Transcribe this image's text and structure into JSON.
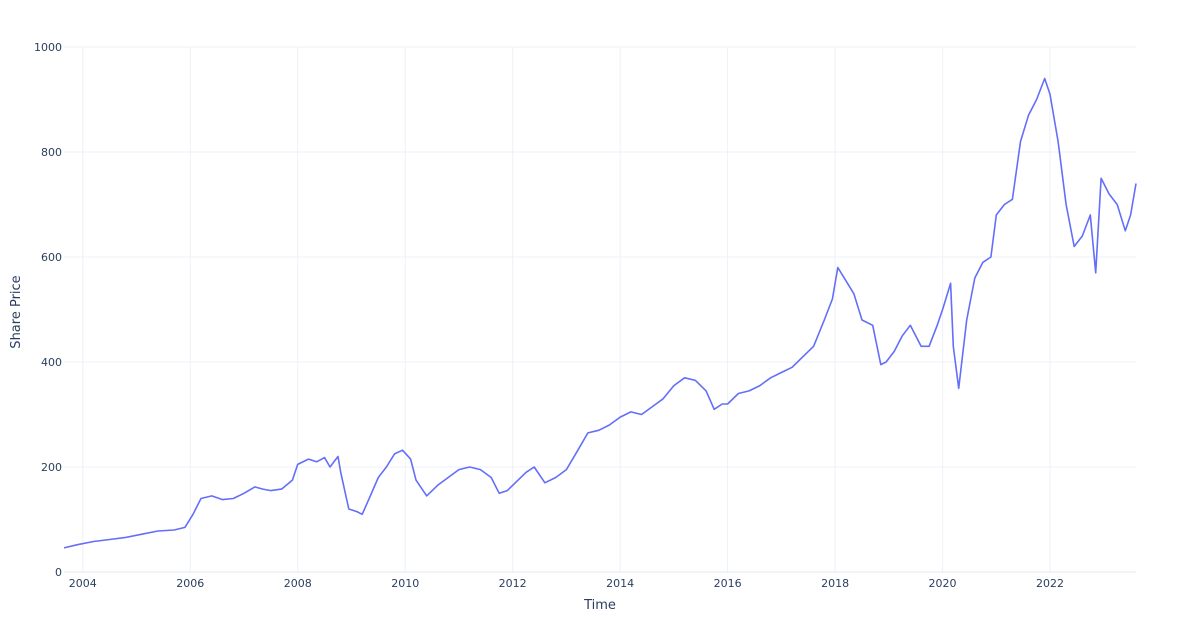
{
  "chart_data": {
    "type": "line",
    "xlabel": "Time",
    "ylabel": "Share Price",
    "xlim": [
      2003.65,
      2023.6
    ],
    "ylim": [
      0,
      1000
    ],
    "x_ticks": [
      2004,
      2006,
      2008,
      2010,
      2012,
      2014,
      2016,
      2018,
      2020,
      2022
    ],
    "y_ticks": [
      0,
      200,
      400,
      600,
      800,
      1000
    ],
    "grid": true,
    "legend": "none",
    "colors": {
      "line": "#636efa",
      "grid": "#edf1f7",
      "text": "#2a3f5f"
    },
    "series": [
      {
        "x": [
          2003.65,
          2003.9,
          2004.2,
          2004.5,
          2004.8,
          2005.1,
          2005.4,
          2005.7,
          2005.9,
          2006.05,
          2006.2,
          2006.4,
          2006.6,
          2006.8,
          2007.0,
          2007.2,
          2007.35,
          2007.5,
          2007.7,
          2007.9,
          2008.0,
          2008.2,
          2008.35,
          2008.5,
          2008.6,
          2008.75,
          2008.8,
          2008.95,
          2009.1,
          2009.2,
          2009.35,
          2009.5,
          2009.65,
          2009.8,
          2009.95,
          2010.1,
          2010.2,
          2010.4,
          2010.6,
          2010.8,
          2011.0,
          2011.2,
          2011.4,
          2011.6,
          2011.75,
          2011.9,
          2012.1,
          2012.25,
          2012.4,
          2012.6,
          2012.8,
          2013.0,
          2013.2,
          2013.4,
          2013.6,
          2013.8,
          2014.0,
          2014.2,
          2014.4,
          2014.6,
          2014.8,
          2015.0,
          2015.2,
          2015.4,
          2015.6,
          2015.75,
          2015.9,
          2016.0,
          2016.2,
          2016.4,
          2016.6,
          2016.8,
          2017.0,
          2017.2,
          2017.4,
          2017.6,
          2017.8,
          2017.95,
          2018.05,
          2018.2,
          2018.35,
          2018.5,
          2018.7,
          2018.85,
          2018.95,
          2019.1,
          2019.25,
          2019.4,
          2019.6,
          2019.75,
          2019.9,
          2020.0,
          2020.15,
          2020.2,
          2020.3,
          2020.45,
          2020.6,
          2020.75,
          2020.9,
          2021.0,
          2021.15,
          2021.3,
          2021.45,
          2021.6,
          2021.75,
          2021.9,
          2022.0,
          2022.15,
          2022.3,
          2022.45,
          2022.6,
          2022.75,
          2022.85,
          2022.95,
          2023.1,
          2023.25,
          2023.4,
          2023.5,
          2023.6
        ],
        "y": [
          46,
          52,
          58,
          62,
          66,
          72,
          78,
          80,
          85,
          110,
          140,
          145,
          138,
          140,
          150,
          162,
          158,
          155,
          158,
          175,
          205,
          215,
          210,
          218,
          200,
          220,
          190,
          120,
          115,
          110,
          145,
          180,
          200,
          225,
          232,
          215,
          175,
          145,
          165,
          180,
          195,
          200,
          195,
          180,
          150,
          155,
          175,
          190,
          200,
          170,
          180,
          195,
          230,
          265,
          270,
          280,
          295,
          305,
          300,
          315,
          330,
          355,
          370,
          365,
          345,
          310,
          320,
          320,
          340,
          345,
          355,
          370,
          380,
          390,
          410,
          430,
          480,
          520,
          580,
          555,
          530,
          480,
          470,
          395,
          400,
          420,
          450,
          470,
          430,
          430,
          470,
          500,
          550,
          430,
          350,
          480,
          560,
          590,
          600,
          680,
          700,
          710,
          820,
          870,
          900,
          940,
          910,
          820,
          700,
          620,
          640,
          680,
          570,
          750,
          720,
          700,
          650,
          680,
          740
        ]
      }
    ]
  }
}
